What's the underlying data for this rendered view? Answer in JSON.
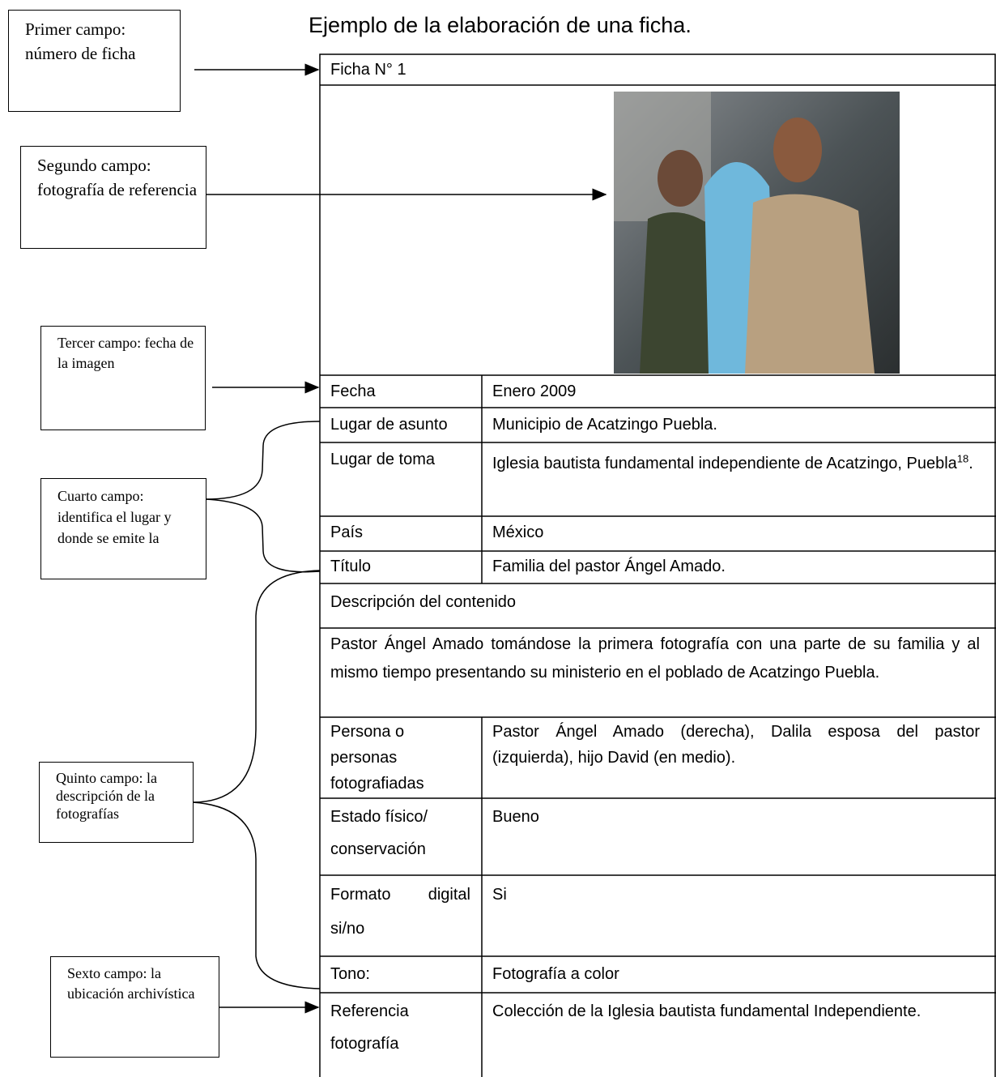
{
  "title": "Ejemplo de la elaboración de una ficha.",
  "callouts": [
    "Primer campo: número de ficha",
    "Segundo campo: fotografía de referencia",
    "Tercer campo: fecha de la imagen",
    "Cuarto campo: identifica el lugar y donde se emite la",
    "Quinto campo: la descripción de la fotografías",
    "Sexto campo: la ubicación archivística"
  ],
  "table": {
    "header": "Ficha N° 1",
    "rows": [
      [
        "Fecha",
        "Enero 2009"
      ],
      [
        "Lugar de asunto",
        "Municipio de Acatzingo Puebla."
      ],
      [
        "Lugar de toma",
        [
          "Iglesia bautista fundamental independiente de Acatzingo, Puebla",
          "18",
          "."
        ]
      ],
      [
        "País",
        "México"
      ],
      [
        "Título",
        "Familia del pastor Ángel Amado."
      ]
    ],
    "description_heading": "Descripción del contenido",
    "description": "Pastor Ángel Amado tomándose la primera fotografía con una parte de su familia y al mismo tiempo presentando su ministerio en el poblado de Acatzingo Puebla.",
    "rows_after": [
      [
        "Persona o personas fotografiadas",
        "Pastor Ángel Amado (derecha), Dalila esposa del pastor (izquierda), hijo David (en medio)."
      ],
      [
        "Estado físico/ conservación",
        "Bueno"
      ],
      [
        "Formato digital si/no",
        "Si"
      ],
      [
        "Tono:",
        "Fotografía a color"
      ],
      [
        "Referencia fotografía",
        "Colección de la Iglesia bautista fundamental Independiente."
      ]
    ]
  }
}
